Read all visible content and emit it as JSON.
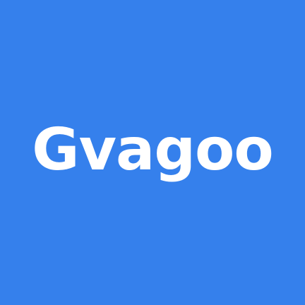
{
  "logo": {
    "text": "Gvagoo"
  },
  "colors": {
    "background": "#3580EC",
    "text": "#FFFFFF"
  }
}
